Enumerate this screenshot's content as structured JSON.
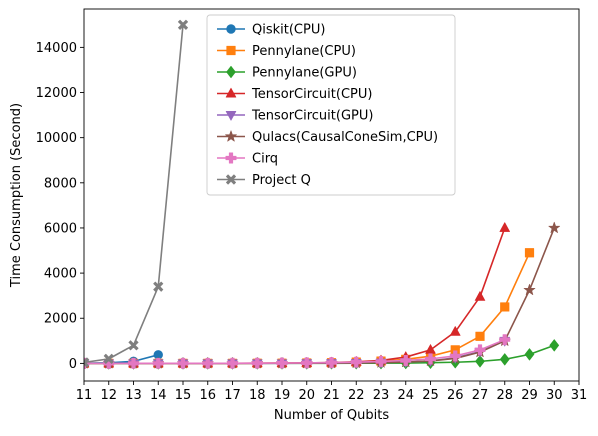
{
  "chart_data": {
    "type": "line",
    "title": "",
    "xlabel": "Number of Qubits",
    "ylabel": "Time Consumption (Second)",
    "xlim": [
      11,
      31
    ],
    "ylim": [
      -780,
      15700
    ],
    "x_ticks": [
      11,
      12,
      13,
      14,
      15,
      16,
      17,
      18,
      19,
      20,
      21,
      22,
      23,
      24,
      25,
      26,
      27,
      28,
      29,
      30,
      31
    ],
    "y_ticks": [
      0,
      2000,
      4000,
      6000,
      8000,
      10000,
      12000,
      14000
    ],
    "grid": false,
    "legend_position": "upper center",
    "series": [
      {
        "name": "Qiskit(CPU)",
        "color": "#1f77b4",
        "marker": "circle",
        "x": [
          11,
          12,
          13,
          14
        ],
        "y": [
          8,
          25,
          90,
          380
        ]
      },
      {
        "name": "Pennylane(CPU)",
        "color": "#ff7f0e",
        "marker": "square",
        "x": [
          11,
          12,
          13,
          14,
          15,
          16,
          17,
          18,
          19,
          20,
          21,
          22,
          23,
          24,
          25,
          26,
          27,
          28,
          29
        ],
        "y": [
          1,
          1,
          1,
          2,
          2,
          3,
          4,
          6,
          10,
          18,
          30,
          55,
          100,
          180,
          320,
          600,
          1200,
          2500,
          4900
        ]
      },
      {
        "name": "Pennylane(GPU)",
        "color": "#2ca02c",
        "marker": "diamond",
        "x": [
          11,
          12,
          13,
          14,
          15,
          16,
          17,
          18,
          19,
          20,
          21,
          22,
          23,
          24,
          25,
          26,
          27,
          28,
          29,
          30
        ],
        "y": [
          1,
          1,
          1,
          1,
          1,
          1,
          1,
          2,
          2,
          3,
          4,
          6,
          10,
          15,
          30,
          50,
          90,
          180,
          400,
          800
        ]
      },
      {
        "name": "TensorCircuit(CPU)",
        "color": "#d62728",
        "marker": "triangle-up",
        "x": [
          11,
          12,
          13,
          14,
          15,
          16,
          17,
          18,
          19,
          20,
          21,
          22,
          23,
          24,
          25,
          26,
          27,
          28
        ],
        "y": [
          1,
          1,
          1,
          2,
          2,
          3,
          5,
          8,
          13,
          22,
          40,
          70,
          130,
          280,
          600,
          1400,
          2950,
          6000
        ]
      },
      {
        "name": "TensorCircuit(GPU)",
        "color": "#9467bd",
        "marker": "triangle-down",
        "x": [
          11,
          12,
          13,
          14,
          15,
          16,
          17,
          18,
          19,
          20,
          21,
          22,
          23,
          24,
          25,
          26,
          27,
          28
        ],
        "y": [
          1,
          1,
          1,
          1,
          1,
          2,
          2,
          3,
          5,
          8,
          12,
          20,
          35,
          60,
          110,
          250,
          520,
          1000
        ]
      },
      {
        "name": "Qulacs(CausalConeSim,CPU)",
        "color": "#8c564b",
        "marker": "star",
        "x": [
          11,
          12,
          13,
          14,
          15,
          16,
          17,
          18,
          19,
          20,
          21,
          22,
          23,
          24,
          25,
          26,
          27,
          28,
          29,
          30
        ],
        "y": [
          1,
          1,
          1,
          1,
          2,
          2,
          3,
          4,
          6,
          9,
          14,
          22,
          35,
          60,
          110,
          220,
          500,
          1000,
          3250,
          6000
        ]
      },
      {
        "name": "Cirq",
        "color": "#e377c2",
        "marker": "plus",
        "x": [
          11,
          12,
          13,
          14,
          15,
          16,
          17,
          18,
          19,
          20,
          21,
          22,
          23,
          24,
          25,
          26,
          27,
          28
        ],
        "y": [
          1,
          1,
          2,
          2,
          3,
          4,
          6,
          9,
          14,
          22,
          35,
          55,
          85,
          130,
          200,
          330,
          600,
          1050
        ]
      },
      {
        "name": "Project Q",
        "color": "#7f7f7f",
        "marker": "x",
        "x": [
          11,
          12,
          13,
          14,
          15
        ],
        "y": [
          40,
          200,
          800,
          3400,
          15000
        ]
      }
    ]
  }
}
